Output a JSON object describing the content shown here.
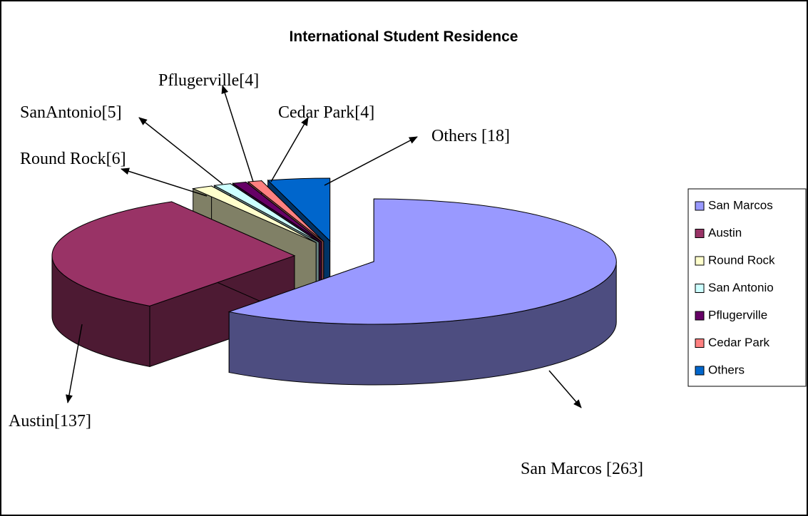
{
  "chart_data": {
    "type": "pie",
    "title": "International Student Residence",
    "categories": [
      "San Marcos",
      "Austin",
      "Round Rock",
      "San Antonio",
      "Pflugerville",
      "Cedar Park",
      "Others"
    ],
    "values": [
      263,
      137,
      6,
      5,
      4,
      4,
      18
    ],
    "value_labels": [
      "San Marcos [263]",
      "Austin[137]",
      "Round Rock[6]",
      "SanAntonio[5]",
      "Pflugerville[4]",
      "Cedar Park[4]",
      "Others [18]"
    ],
    "colors": [
      "#9999ff",
      "#993366",
      "#ffffcc",
      "#ccffff",
      "#660066",
      "#ff8080",
      "#0066cc"
    ],
    "legend": "right"
  }
}
